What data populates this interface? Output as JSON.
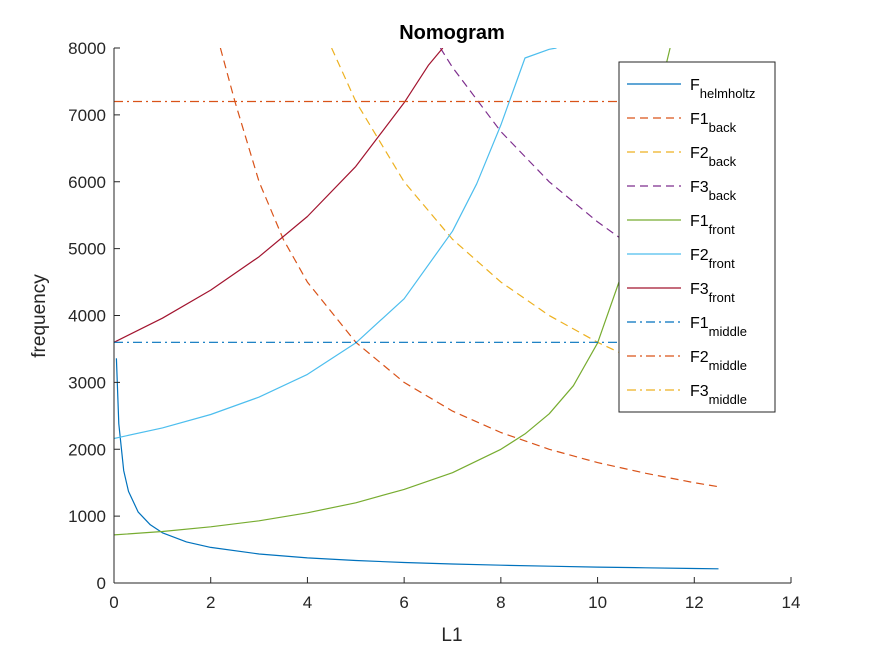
{
  "chart_data": {
    "type": "line",
    "title": "Nomogram",
    "xlabel": "L1",
    "ylabel": "frequency",
    "xlim": [
      0,
      14
    ],
    "ylim": [
      0,
      8000
    ],
    "xticks": [
      0,
      2,
      4,
      6,
      8,
      10,
      12,
      14
    ],
    "yticks": [
      0,
      1000,
      2000,
      3000,
      4000,
      5000,
      6000,
      7000,
      8000
    ],
    "grid": false,
    "legend_position": "top-right",
    "series": [
      {
        "name": "F",
        "sub": "helmholtz",
        "color": "#0072BD",
        "style": "solid",
        "x": [
          0.05,
          0.1,
          0.2,
          0.3,
          0.5,
          0.75,
          1.0,
          1.5,
          2,
          3,
          4,
          5,
          6,
          7,
          8,
          9,
          10,
          11,
          12,
          12.5
        ],
        "y": [
          3360,
          2380,
          1680,
          1370,
          1060,
          870,
          750,
          615,
          532,
          434,
          376,
          336,
          307,
          284,
          266,
          251,
          238,
          227,
          217,
          213
        ]
      },
      {
        "name": "F1",
        "sub": "back",
        "color": "#D95319",
        "style": "dashed",
        "x": [
          2.2,
          2.5,
          3,
          3.5,
          4,
          5,
          6,
          7,
          8,
          9,
          10,
          11,
          12,
          12.5
        ],
        "y": [
          8000,
          7200,
          6000,
          5140,
          4500,
          3600,
          3000,
          2570,
          2250,
          2000,
          1800,
          1640,
          1500,
          1440
        ]
      },
      {
        "name": "F2",
        "sub": "back",
        "color": "#EDB120",
        "style": "dashed",
        "x": [
          4.5,
          5,
          6,
          7,
          8,
          9,
          10,
          10.5
        ],
        "y": [
          8000,
          7200,
          6000,
          5140,
          4500,
          4000,
          3600,
          3430
        ]
      },
      {
        "name": "F3",
        "sub": "back",
        "color": "#7E2F8E",
        "style": "dashed",
        "x": [
          6.75,
          7,
          8,
          9,
          10,
          10.5
        ],
        "y": [
          8000,
          7710,
          6750,
          6000,
          5400,
          5140
        ]
      },
      {
        "name": "F1",
        "sub": "front",
        "color": "#77AC30",
        "style": "solid",
        "x": [
          0,
          1,
          2,
          3,
          4,
          5,
          6,
          7,
          8,
          8.5,
          9,
          9.5,
          10,
          10.5,
          11,
          11.5
        ],
        "y": [
          720,
          770,
          840,
          930,
          1050,
          1200,
          1400,
          1650,
          2000,
          2230,
          2530,
          2950,
          3590,
          4620,
          6500,
          8000
        ]
      },
      {
        "name": "F2",
        "sub": "front",
        "color": "#4DBEEE",
        "style": "solid",
        "x": [
          0,
          1,
          2,
          3,
          4,
          5,
          6,
          7,
          7.5,
          8,
          8.5,
          9,
          9.15
        ],
        "y": [
          2160,
          2320,
          2520,
          2780,
          3120,
          3590,
          4250,
          5260,
          5970,
          6850,
          7850,
          7980,
          8000
        ]
      },
      {
        "name": "F3",
        "sub": "front",
        "color": "#A2142F",
        "style": "solid",
        "x": [
          0,
          1,
          2,
          3,
          4,
          5,
          6,
          6.5,
          6.8
        ],
        "y": [
          3600,
          3960,
          4380,
          4880,
          5480,
          6230,
          7180,
          7740,
          8000
        ]
      },
      {
        "name": "F1",
        "sub": "middle",
        "color": "#0072BD",
        "style": "dashdot",
        "x": [
          0,
          10.5
        ],
        "y": [
          3600,
          3600
        ]
      },
      {
        "name": "F2",
        "sub": "middle",
        "color": "#D95319",
        "style": "dashdot",
        "x": [
          0,
          10.5
        ],
        "y": [
          7200,
          7200
        ]
      },
      {
        "name": "F3",
        "sub": "middle",
        "color": "#EDB120",
        "style": "dashdot",
        "x": [],
        "y": []
      }
    ]
  }
}
